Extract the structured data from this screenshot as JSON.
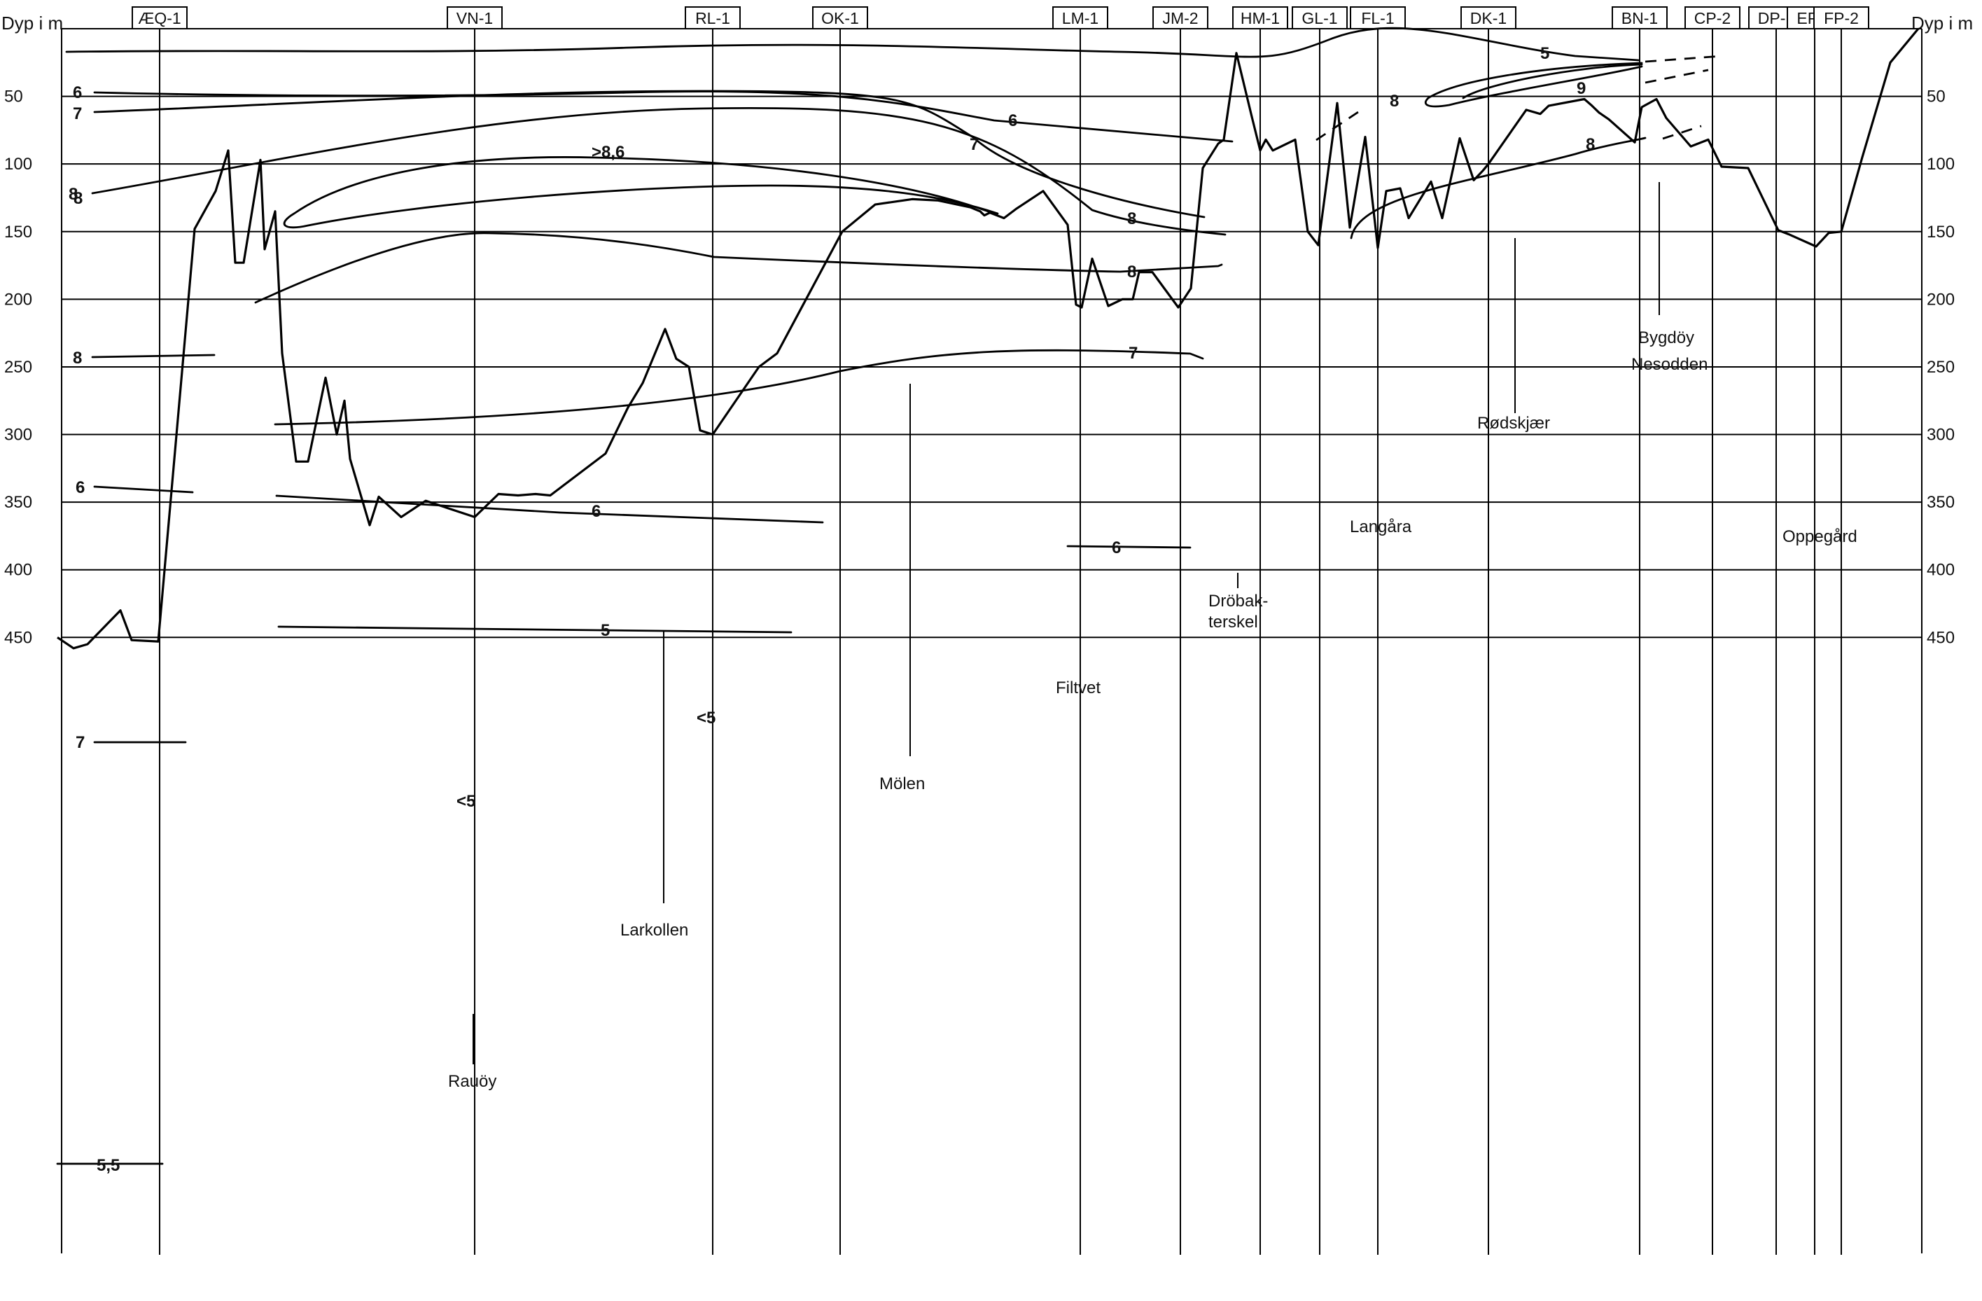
{
  "chart_data": {
    "type": "line",
    "ylabel": "Dyp i m",
    "ylabel_right": "Dyp i m",
    "yticks": [
      50,
      100,
      150,
      200,
      250,
      300,
      350,
      400,
      450
    ],
    "ylim": [
      0,
      470
    ],
    "stations": [
      {
        "name": "ÆQ-1"
      },
      {
        "name": "VN-1"
      },
      {
        "name": "RL-1"
      },
      {
        "name": "OK-1"
      },
      {
        "name": "LM-1"
      },
      {
        "name": "JM-2"
      },
      {
        "name": "HM-1"
      },
      {
        "name": "GL-1"
      },
      {
        "name": "FL-1"
      },
      {
        "name": "DK-1"
      },
      {
        "name": "BN-1"
      },
      {
        "name": "CP-2"
      },
      {
        "name": "DP-1"
      },
      {
        "name": "EP-1"
      },
      {
        "name": "FP-2"
      }
    ],
    "bottom_profile_depth_m": [
      450,
      458,
      455,
      430,
      452,
      453,
      148,
      120,
      90,
      173,
      173,
      97,
      163,
      135,
      240,
      320,
      320,
      258,
      300,
      275,
      318,
      367,
      346,
      361,
      349,
      361,
      344,
      345,
      344,
      345,
      314,
      280,
      262,
      222,
      244,
      250,
      297,
      300,
      250,
      240,
      150,
      130,
      126,
      127,
      132,
      135,
      138,
      136,
      140,
      133,
      120,
      145,
      204,
      206,
      170,
      205,
      200,
      200,
      180,
      180,
      206,
      192,
      103,
      85,
      82,
      18,
      65,
      90,
      82,
      90,
      82,
      150,
      160,
      55,
      147,
      80,
      162,
      120,
      118,
      140,
      113,
      140,
      81,
      112,
      105,
      100,
      60,
      63,
      57,
      52,
      57,
      62,
      67,
      84,
      58,
      52,
      66,
      87,
      82,
      102,
      103,
      149,
      152,
      161,
      151,
      150,
      95,
      25,
      0
    ],
    "isoline_labels": [
      "5",
      "6",
      "6",
      "7",
      "8",
      ">8,6",
      "7",
      "8",
      "8",
      "8",
      "7",
      "6",
      "5",
      "5,5",
      "6",
      "6",
      "7",
      "8",
      "8",
      "9",
      "8",
      "<5",
      "<5"
    ],
    "places": [
      "Rauöy",
      "Larkollen",
      "Mölen",
      "Filtvet",
      "Dröbak-",
      "terskel",
      "Langåra",
      "Rødskjær",
      "Bygdöy",
      "Nesodden",
      "Oppegård"
    ],
    "grid": true
  }
}
